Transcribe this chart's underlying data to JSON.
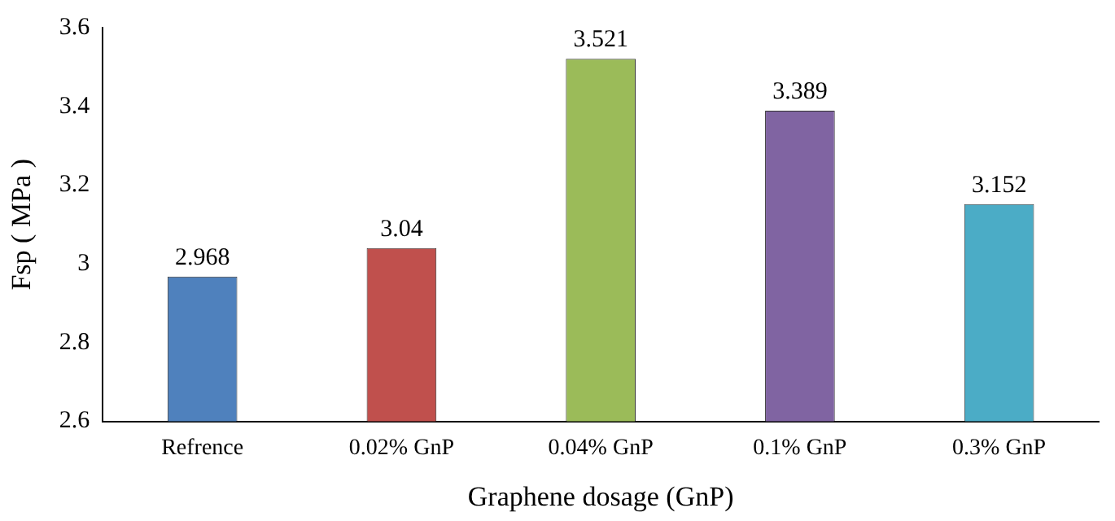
{
  "chart_data": {
    "type": "bar",
    "xlabel": "Graphene dosage (GnP)",
    "ylabel": "Fsp ( MPa )",
    "categories": [
      "Refrence",
      "0.02% GnP",
      "0.04% GnP",
      "0.1% GnP",
      "0.3% GnP"
    ],
    "values": [
      2.968,
      3.04,
      3.521,
      3.389,
      3.152
    ],
    "colors": [
      "#4f81bd",
      "#c0504d",
      "#9bbb59",
      "#8064a2",
      "#4bacc6"
    ],
    "ylim": [
      2.6,
      3.6
    ],
    "yticks": [
      2.6,
      2.8,
      3,
      3.2,
      3.4,
      3.6
    ],
    "grid": false,
    "legend": false,
    "data_labels": true
  }
}
